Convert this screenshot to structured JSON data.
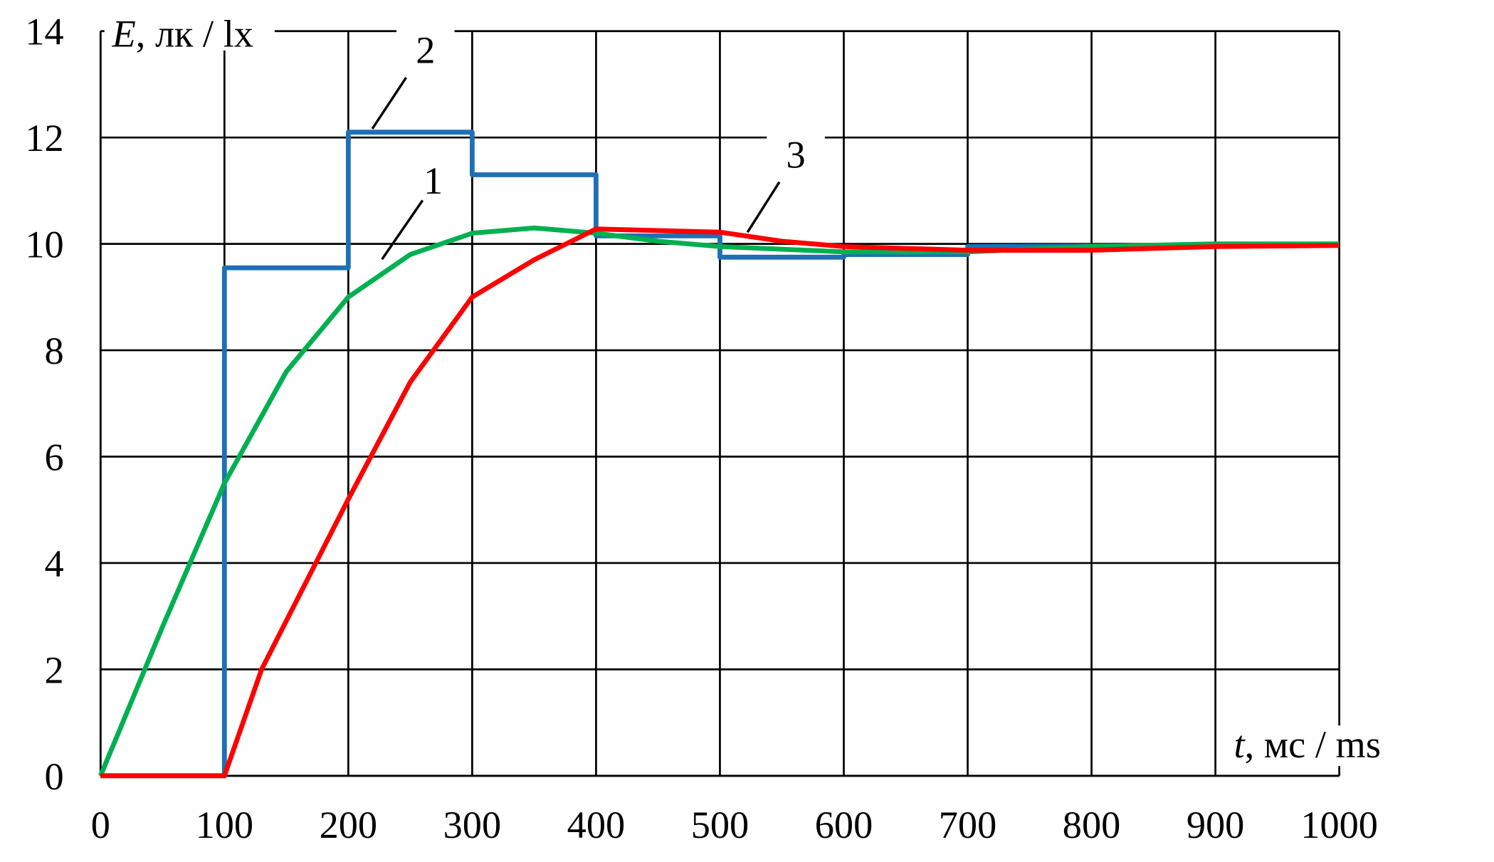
{
  "chart_data": {
    "type": "line",
    "y_label": {
      "symbol": "E",
      "unit": ", лк / lx"
    },
    "x_label": {
      "symbol": "t",
      "unit": ", мс / ms"
    },
    "xlim": [
      0,
      1000
    ],
    "ylim": [
      0,
      14
    ],
    "xticks": [
      0,
      100,
      200,
      300,
      400,
      500,
      600,
      700,
      800,
      900,
      1000
    ],
    "yticks": [
      0,
      2,
      4,
      6,
      8,
      10,
      12,
      14
    ],
    "grid": true,
    "series": [
      {
        "name": "1",
        "color": "#00b050",
        "x": [
          0,
          50,
          100,
          150,
          200,
          250,
          300,
          350,
          400,
          450,
          500,
          550,
          600,
          700,
          800,
          900,
          1000
        ],
        "values": [
          0,
          2.8,
          5.5,
          7.6,
          9.0,
          9.8,
          10.2,
          10.3,
          10.2,
          10.05,
          9.95,
          9.9,
          9.85,
          9.85,
          9.95,
          10,
          10
        ]
      },
      {
        "name": "2",
        "color": "#1f6fb5",
        "x": [
          0,
          100,
          100,
          200,
          200,
          300,
          300,
          400,
          400,
          500,
          500,
          600,
          600,
          700,
          700,
          1000
        ],
        "values": [
          0,
          0,
          9.55,
          9.55,
          12.1,
          12.1,
          11.3,
          11.3,
          10.15,
          10.15,
          9.75,
          9.75,
          9.8,
          9.8,
          9.95,
          9.98
        ]
      },
      {
        "name": "3",
        "color": "#ff0000",
        "x": [
          0,
          100,
          130,
          200,
          250,
          300,
          350,
          400,
          500,
          550,
          600,
          700,
          800,
          900,
          1000
        ],
        "values": [
          0,
          0,
          2,
          5.2,
          7.4,
          9.0,
          9.7,
          10.28,
          10.22,
          10.05,
          9.95,
          9.88,
          9.88,
          9.95,
          9.97
        ]
      }
    ]
  }
}
